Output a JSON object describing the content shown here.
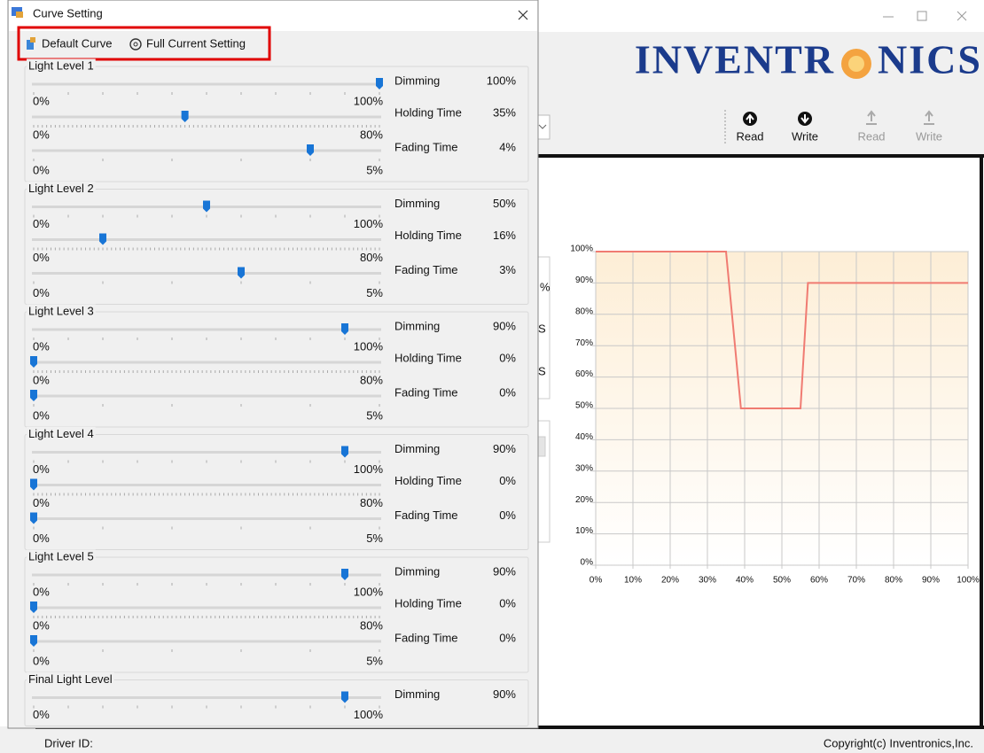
{
  "window": {
    "logo_left": "INVENTR",
    "logo_right": "NICS",
    "toolbar": [
      "Read",
      "Write",
      "Read",
      "Write"
    ],
    "fragments": [
      "%",
      "S",
      "S"
    ]
  },
  "dialog": {
    "title": "Curve Setting",
    "toolbar": [
      "Default Curve",
      "Full Current Setting"
    ],
    "groups": [
      {
        "name": "Light Level 1",
        "rows": [
          {
            "label": "Dimming",
            "value": 100,
            "value_label": "100%",
            "min": 0,
            "min_label": "0%",
            "max": 100,
            "max_label": "100%"
          },
          {
            "label": "Holding Time",
            "value": 35,
            "value_label": "35%",
            "min": 0,
            "min_label": "0%",
            "max": 80,
            "max_label": "80%"
          },
          {
            "label": "Fading Time",
            "value": 4,
            "value_label": "4%",
            "min": 0,
            "min_label": "0%",
            "max": 5,
            "max_label": "5%"
          }
        ]
      },
      {
        "name": "Light Level 2",
        "rows": [
          {
            "label": "Dimming",
            "value": 50,
            "value_label": "50%",
            "min": 0,
            "min_label": "0%",
            "max": 100,
            "max_label": "100%"
          },
          {
            "label": "Holding Time",
            "value": 16,
            "value_label": "16%",
            "min": 0,
            "min_label": "0%",
            "max": 80,
            "max_label": "80%"
          },
          {
            "label": "Fading Time",
            "value": 3,
            "value_label": "3%",
            "min": 0,
            "min_label": "0%",
            "max": 5,
            "max_label": "5%"
          }
        ]
      },
      {
        "name": "Light Level 3",
        "rows": [
          {
            "label": "Dimming",
            "value": 90,
            "value_label": "90%",
            "min": 0,
            "min_label": "0%",
            "max": 100,
            "max_label": "100%"
          },
          {
            "label": "Holding Time",
            "value": 0,
            "value_label": "0%",
            "min": 0,
            "min_label": "0%",
            "max": 80,
            "max_label": "80%"
          },
          {
            "label": "Fading Time",
            "value": 0,
            "value_label": "0%",
            "min": 0,
            "min_label": "0%",
            "max": 5,
            "max_label": "5%"
          }
        ]
      },
      {
        "name": "Light Level 4",
        "rows": [
          {
            "label": "Dimming",
            "value": 90,
            "value_label": "90%",
            "min": 0,
            "min_label": "0%",
            "max": 100,
            "max_label": "100%"
          },
          {
            "label": "Holding Time",
            "value": 0,
            "value_label": "0%",
            "min": 0,
            "min_label": "0%",
            "max": 80,
            "max_label": "80%"
          },
          {
            "label": "Fading Time",
            "value": 0,
            "value_label": "0%",
            "min": 0,
            "min_label": "0%",
            "max": 5,
            "max_label": "5%"
          }
        ]
      },
      {
        "name": "Light Level 5",
        "rows": [
          {
            "label": "Dimming",
            "value": 90,
            "value_label": "90%",
            "min": 0,
            "min_label": "0%",
            "max": 100,
            "max_label": "100%"
          },
          {
            "label": "Holding Time",
            "value": 0,
            "value_label": "0%",
            "min": 0,
            "min_label": "0%",
            "max": 80,
            "max_label": "80%"
          },
          {
            "label": "Fading Time",
            "value": 0,
            "value_label": "0%",
            "min": 0,
            "min_label": "0%",
            "max": 5,
            "max_label": "5%"
          }
        ]
      },
      {
        "name": "Final Light Level",
        "rows": [
          {
            "label": "Dimming",
            "value": 90,
            "value_label": "90%",
            "min": 0,
            "min_label": "0%",
            "max": 100,
            "max_label": "100%"
          }
        ]
      }
    ]
  },
  "chart": {
    "x": [
      0,
      35,
      39,
      55,
      57,
      100
    ],
    "y": [
      100,
      100,
      50,
      50,
      90,
      90
    ],
    "xlim": [
      0,
      100
    ],
    "ylim": [
      0,
      100
    ],
    "color": "#f07b72",
    "xticks": [
      {
        "value": 0,
        "label": "0%"
      },
      {
        "value": 10,
        "label": "10%"
      },
      {
        "value": 20,
        "label": "20%"
      },
      {
        "value": 30,
        "label": "30%"
      },
      {
        "value": 40,
        "label": "40%"
      },
      {
        "value": 50,
        "label": "50%"
      },
      {
        "value": 60,
        "label": "60%"
      },
      {
        "value": 70,
        "label": "70%"
      },
      {
        "value": 80,
        "label": "80%"
      },
      {
        "value": 90,
        "label": "90%"
      },
      {
        "value": 100,
        "label": "100%"
      }
    ],
    "yticks": [
      {
        "value": 0,
        "label": "0%"
      },
      {
        "value": 10,
        "label": "10%"
      },
      {
        "value": 20,
        "label": "20%"
      },
      {
        "value": 30,
        "label": "30%"
      },
      {
        "value": 40,
        "label": "40%"
      },
      {
        "value": 50,
        "label": "50%"
      },
      {
        "value": 60,
        "label": "60%"
      },
      {
        "value": 70,
        "label": "70%"
      },
      {
        "value": 80,
        "label": "80%"
      },
      {
        "value": 90,
        "label": "90%"
      },
      {
        "value": 100,
        "label": "100%"
      }
    ]
  },
  "status": {
    "left": "Driver ID:",
    "right": "Copyright(c) Inventronics,Inc."
  }
}
